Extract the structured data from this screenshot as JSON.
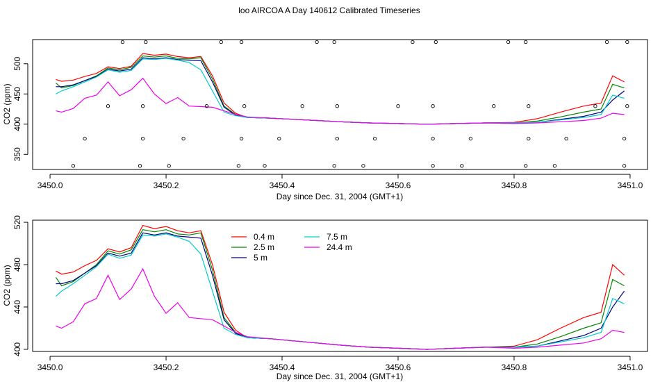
{
  "figure": {
    "title": "loo AIRCOA A  Day 140612  Calibrated Timeseries"
  },
  "chart_data": [
    {
      "type": "line",
      "title": "loo AIRCOA A  Day 140612  Calibrated Timeseries",
      "xlabel": "Day since Dec. 31, 2004 (GMT+1)",
      "ylabel": "CO2 (ppm)",
      "xlim": [
        3450.0,
        3451.0
      ],
      "ylim": [
        325,
        540
      ],
      "xticks": [
        3450.0,
        3450.2,
        3450.4,
        3450.6,
        3450.8,
        3451.0
      ],
      "xtick_labels": [
        "3450.0",
        "3450.2",
        "3450.4",
        "3450.6",
        "3450.8",
        "3451.0"
      ],
      "yticks": [
        350,
        400,
        450,
        500
      ],
      "ytick_labels": [
        "350",
        "400",
        "450",
        "500"
      ],
      "grid": false,
      "series": [
        {
          "color": "#ff0000",
          "x": [
            3450.01,
            3450.02,
            3450.04,
            3450.06,
            3450.08,
            3450.1,
            3450.12,
            3450.14,
            3450.16,
            3450.18,
            3450.2,
            3450.22,
            3450.24,
            3450.26,
            3450.28,
            3450.3,
            3450.32,
            3450.34,
            3450.38,
            3450.42,
            3450.46,
            3450.5,
            3450.55,
            3450.6,
            3450.65,
            3450.7,
            3450.75,
            3450.8,
            3450.84,
            3450.88,
            3450.92,
            3450.95,
            3450.97,
            3450.99
          ],
          "values": [
            474,
            471,
            473,
            479,
            484,
            495,
            492,
            496,
            517,
            514,
            516,
            512,
            510,
            512,
            480,
            435,
            418,
            411,
            410,
            408,
            406,
            404,
            402,
            401,
            400,
            401,
            402,
            403,
            409,
            420,
            430,
            435,
            480,
            470
          ]
        },
        {
          "color": "#008800",
          "x": [
            3450.01,
            3450.02,
            3450.04,
            3450.06,
            3450.08,
            3450.1,
            3450.12,
            3450.14,
            3450.16,
            3450.18,
            3450.2,
            3450.22,
            3450.24,
            3450.26,
            3450.28,
            3450.3,
            3450.32,
            3450.34,
            3450.38,
            3450.42,
            3450.46,
            3450.5,
            3450.55,
            3450.6,
            3450.65,
            3450.7,
            3450.75,
            3450.8,
            3450.84,
            3450.88,
            3450.92,
            3450.95,
            3450.97,
            3450.99
          ],
          "values": [
            468,
            460,
            464,
            472,
            480,
            493,
            490,
            494,
            513,
            511,
            513,
            509,
            508,
            510,
            475,
            430,
            416,
            411,
            410,
            408,
            406,
            404,
            402,
            401,
            400,
            401,
            402,
            402,
            405,
            412,
            420,
            425,
            466,
            460
          ]
        },
        {
          "color": "#000080",
          "x": [
            3450.01,
            3450.02,
            3450.04,
            3450.06,
            3450.08,
            3450.1,
            3450.12,
            3450.14,
            3450.16,
            3450.18,
            3450.2,
            3450.22,
            3450.24,
            3450.26,
            3450.28,
            3450.3,
            3450.32,
            3450.34,
            3450.38,
            3450.42,
            3450.46,
            3450.5,
            3450.55,
            3450.6,
            3450.65,
            3450.7,
            3450.75,
            3450.8,
            3450.84,
            3450.88,
            3450.92,
            3450.95,
            3450.97,
            3450.99
          ],
          "values": [
            462,
            462,
            465,
            472,
            479,
            491,
            488,
            491,
            510,
            508,
            510,
            507,
            506,
            505,
            470,
            428,
            415,
            411,
            410,
            408,
            406,
            404,
            402,
            401,
            400,
            401,
            402,
            402,
            403,
            408,
            413,
            420,
            440,
            455
          ]
        },
        {
          "color": "#00cccc",
          "x": [
            3450.01,
            3450.02,
            3450.04,
            3450.06,
            3450.08,
            3450.1,
            3450.12,
            3450.14,
            3450.16,
            3450.18,
            3450.2,
            3450.22,
            3450.24,
            3450.26,
            3450.28,
            3450.3,
            3450.32,
            3450.34,
            3450.38,
            3450.42,
            3450.46,
            3450.5,
            3450.55,
            3450.6,
            3450.65,
            3450.7,
            3450.75,
            3450.8,
            3450.84,
            3450.88,
            3450.92,
            3450.95,
            3450.97,
            3450.99
          ],
          "values": [
            450,
            455,
            462,
            470,
            478,
            490,
            486,
            489,
            508,
            507,
            509,
            506,
            502,
            490,
            455,
            420,
            414,
            411,
            410,
            408,
            406,
            404,
            402,
            401,
            400,
            401,
            402,
            402,
            403,
            407,
            411,
            416,
            448,
            443
          ]
        },
        {
          "color": "#ee00ee",
          "x": [
            3450.01,
            3450.02,
            3450.04,
            3450.06,
            3450.08,
            3450.1,
            3450.12,
            3450.14,
            3450.16,
            3450.18,
            3450.2,
            3450.22,
            3450.24,
            3450.26,
            3450.28,
            3450.3,
            3450.32,
            3450.34,
            3450.38,
            3450.42,
            3450.46,
            3450.5,
            3450.55,
            3450.6,
            3450.65,
            3450.7,
            3450.75,
            3450.8,
            3450.84,
            3450.88,
            3450.92,
            3450.95,
            3450.97,
            3450.99
          ],
          "values": [
            422,
            420,
            426,
            443,
            448,
            470,
            447,
            457,
            476,
            450,
            434,
            444,
            430,
            429,
            428,
            422,
            416,
            412,
            410,
            408,
            406,
            404,
            402,
            401,
            400,
            401,
            402,
            401,
            402,
            404,
            406,
            410,
            418,
            416
          ]
        }
      ],
      "points": {
        "x": [
          3450.04,
          3450.06,
          3450.1,
          3450.125,
          3450.155,
          3450.16,
          3450.16,
          3450.165,
          3450.205,
          3450.23,
          3450.27,
          3450.295,
          3450.325,
          3450.33,
          3450.335,
          3450.33,
          3450.37,
          3450.395,
          3450.435,
          3450.46,
          3450.49,
          3450.495,
          3450.495,
          3450.49,
          3450.54,
          3450.56,
          3450.6,
          3450.625,
          3450.66,
          3450.66,
          3450.66,
          3450.665,
          3450.71,
          3450.725,
          3450.765,
          3450.79,
          3450.82,
          3450.825,
          3450.825,
          3450.82,
          3450.87,
          3450.89,
          3450.94,
          3450.96,
          3450.99,
          3450.99,
          3450.995,
          3450.995
        ],
        "y": [
          331,
          376,
          430,
          536,
          331,
          376,
          430,
          536,
          331,
          376,
          430,
          536,
          331,
          376,
          430,
          536,
          331,
          376,
          430,
          536,
          331,
          376,
          430,
          536,
          331,
          376,
          430,
          536,
          331,
          376,
          430,
          536,
          331,
          376,
          430,
          536,
          331,
          376,
          430,
          536,
          331,
          376,
          430,
          536,
          331,
          376,
          430,
          536
        ]
      }
    },
    {
      "type": "line",
      "xlabel": "Day since Dec. 31, 2004 (GMT+1)",
      "ylabel": "CO2 (ppm)",
      "xlim": [
        3450.0,
        3451.0
      ],
      "ylim": [
        398,
        522
      ],
      "xticks": [
        3450.0,
        3450.2,
        3450.4,
        3450.6,
        3450.8,
        3451.0
      ],
      "xtick_labels": [
        "3450.0",
        "3450.2",
        "3450.4",
        "3450.6",
        "3450.8",
        "3451.0"
      ],
      "yticks": [
        400,
        440,
        480,
        520
      ],
      "ytick_labels": [
        "400",
        "440",
        "480",
        "520"
      ],
      "grid": false,
      "legend_placement": "top-center",
      "series": [
        {
          "name": "0.4 m",
          "color": "#ff0000",
          "x": [
            3450.01,
            3450.02,
            3450.04,
            3450.06,
            3450.08,
            3450.1,
            3450.12,
            3450.14,
            3450.16,
            3450.18,
            3450.2,
            3450.22,
            3450.24,
            3450.26,
            3450.28,
            3450.3,
            3450.32,
            3450.34,
            3450.38,
            3450.42,
            3450.46,
            3450.5,
            3450.55,
            3450.6,
            3450.65,
            3450.7,
            3450.75,
            3450.8,
            3450.84,
            3450.88,
            3450.92,
            3450.95,
            3450.97,
            3450.99
          ],
          "values": [
            474,
            471,
            473,
            479,
            484,
            495,
            492,
            496,
            517,
            514,
            516,
            512,
            510,
            512,
            480,
            435,
            418,
            411,
            410,
            408,
            406,
            404,
            402,
            401,
            400,
            401,
            402,
            403,
            409,
            420,
            430,
            435,
            480,
            470
          ]
        },
        {
          "name": "2.5 m",
          "color": "#008800",
          "x": [
            3450.01,
            3450.02,
            3450.04,
            3450.06,
            3450.08,
            3450.1,
            3450.12,
            3450.14,
            3450.16,
            3450.18,
            3450.2,
            3450.22,
            3450.24,
            3450.26,
            3450.28,
            3450.3,
            3450.32,
            3450.34,
            3450.38,
            3450.42,
            3450.46,
            3450.5,
            3450.55,
            3450.6,
            3450.65,
            3450.7,
            3450.75,
            3450.8,
            3450.84,
            3450.88,
            3450.92,
            3450.95,
            3450.97,
            3450.99
          ],
          "values": [
            468,
            460,
            464,
            472,
            480,
            493,
            490,
            494,
            513,
            511,
            513,
            509,
            508,
            510,
            475,
            430,
            416,
            411,
            410,
            408,
            406,
            404,
            402,
            401,
            400,
            401,
            402,
            402,
            405,
            412,
            420,
            425,
            466,
            460
          ]
        },
        {
          "name": "5 m",
          "color": "#000080",
          "x": [
            3450.01,
            3450.02,
            3450.04,
            3450.06,
            3450.08,
            3450.1,
            3450.12,
            3450.14,
            3450.16,
            3450.18,
            3450.2,
            3450.22,
            3450.24,
            3450.26,
            3450.28,
            3450.3,
            3450.32,
            3450.34,
            3450.38,
            3450.42,
            3450.46,
            3450.5,
            3450.55,
            3450.6,
            3450.65,
            3450.7,
            3450.75,
            3450.8,
            3450.84,
            3450.88,
            3450.92,
            3450.95,
            3450.97,
            3450.99
          ],
          "values": [
            462,
            462,
            465,
            472,
            479,
            491,
            488,
            491,
            510,
            508,
            510,
            507,
            506,
            505,
            470,
            428,
            415,
            411,
            410,
            408,
            406,
            404,
            402,
            401,
            400,
            401,
            402,
            402,
            403,
            408,
            413,
            420,
            440,
            455
          ]
        },
        {
          "name": "7.5 m",
          "color": "#00cccc",
          "x": [
            3450.01,
            3450.02,
            3450.04,
            3450.06,
            3450.08,
            3450.1,
            3450.12,
            3450.14,
            3450.16,
            3450.18,
            3450.2,
            3450.22,
            3450.24,
            3450.26,
            3450.28,
            3450.3,
            3450.32,
            3450.34,
            3450.38,
            3450.42,
            3450.46,
            3450.5,
            3450.55,
            3450.6,
            3450.65,
            3450.7,
            3450.75,
            3450.8,
            3450.84,
            3450.88,
            3450.92,
            3450.95,
            3450.97,
            3450.99
          ],
          "values": [
            450,
            455,
            462,
            470,
            478,
            490,
            486,
            489,
            508,
            507,
            509,
            506,
            502,
            490,
            455,
            420,
            414,
            411,
            410,
            408,
            406,
            404,
            402,
            401,
            400,
            401,
            402,
            402,
            403,
            407,
            411,
            416,
            448,
            443
          ]
        },
        {
          "name": "24.4 m",
          "color": "#ee00ee",
          "x": [
            3450.01,
            3450.02,
            3450.04,
            3450.06,
            3450.08,
            3450.1,
            3450.12,
            3450.14,
            3450.16,
            3450.18,
            3450.2,
            3450.22,
            3450.24,
            3450.26,
            3450.28,
            3450.3,
            3450.32,
            3450.34,
            3450.38,
            3450.42,
            3450.46,
            3450.5,
            3450.55,
            3450.6,
            3450.65,
            3450.7,
            3450.75,
            3450.8,
            3450.84,
            3450.88,
            3450.92,
            3450.95,
            3450.97,
            3450.99
          ],
          "values": [
            422,
            420,
            426,
            443,
            448,
            470,
            447,
            457,
            476,
            450,
            434,
            444,
            430,
            429,
            428,
            422,
            416,
            412,
            410,
            408,
            406,
            404,
            402,
            401,
            400,
            401,
            402,
            401,
            402,
            404,
            406,
            410,
            418,
            416
          ]
        }
      ]
    }
  ]
}
